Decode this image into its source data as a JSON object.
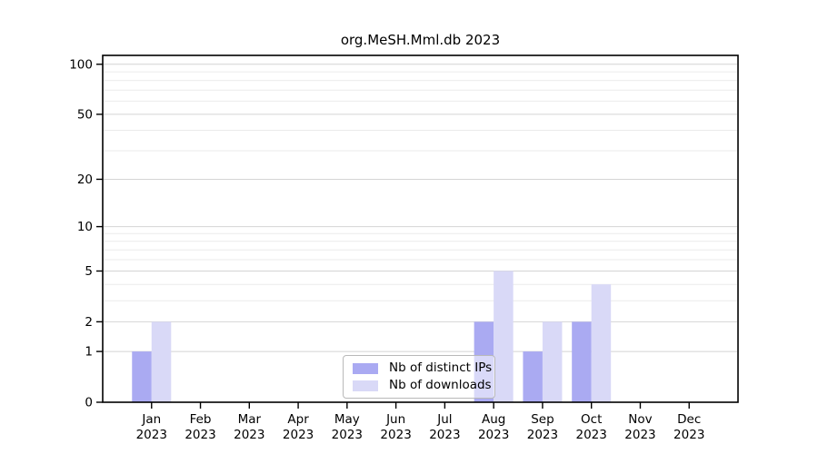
{
  "chart_data": {
    "type": "bar",
    "title": "org.MeSH.Mml.db 2023",
    "xlabel": "",
    "ylabel": "",
    "yscale": "log1p",
    "ylim": [
      0,
      113
    ],
    "yticks": [
      0,
      1,
      2,
      5,
      10,
      20,
      50,
      100
    ],
    "yticks_minor": [
      3,
      4,
      6,
      7,
      8,
      9,
      30,
      40,
      60,
      70,
      80,
      90
    ],
    "grid": "horizontal-both",
    "legend_position": "inside-bottom-center",
    "categories": [
      {
        "month": "Jan",
        "year": "2023"
      },
      {
        "month": "Feb",
        "year": "2023"
      },
      {
        "month": "Mar",
        "year": "2023"
      },
      {
        "month": "Apr",
        "year": "2023"
      },
      {
        "month": "May",
        "year": "2023"
      },
      {
        "month": "Jun",
        "year": "2023"
      },
      {
        "month": "Jul",
        "year": "2023"
      },
      {
        "month": "Aug",
        "year": "2023"
      },
      {
        "month": "Sep",
        "year": "2023"
      },
      {
        "month": "Oct",
        "year": "2023"
      },
      {
        "month": "Nov",
        "year": "2023"
      },
      {
        "month": "Dec",
        "year": "2023"
      }
    ],
    "series": [
      {
        "name": "Nb of distinct IPs",
        "color_key": "distinct_ips",
        "values": [
          1,
          0,
          0,
          0,
          0,
          0,
          0,
          2,
          1,
          2,
          0,
          0
        ]
      },
      {
        "name": "Nb of downloads",
        "color_key": "downloads",
        "values": [
          2,
          0,
          0,
          0,
          0,
          0,
          0,
          5,
          2,
          4,
          0,
          0
        ]
      }
    ]
  },
  "colors": {
    "distinct_ips": "#aaaaf2",
    "downloads": "#d9d9f7",
    "grid_major": "#d4d4d4",
    "grid_minor": "#ebebeb",
    "axis": "#000000",
    "tick_label": "#000000",
    "legend_border": "#b9b9b9"
  }
}
